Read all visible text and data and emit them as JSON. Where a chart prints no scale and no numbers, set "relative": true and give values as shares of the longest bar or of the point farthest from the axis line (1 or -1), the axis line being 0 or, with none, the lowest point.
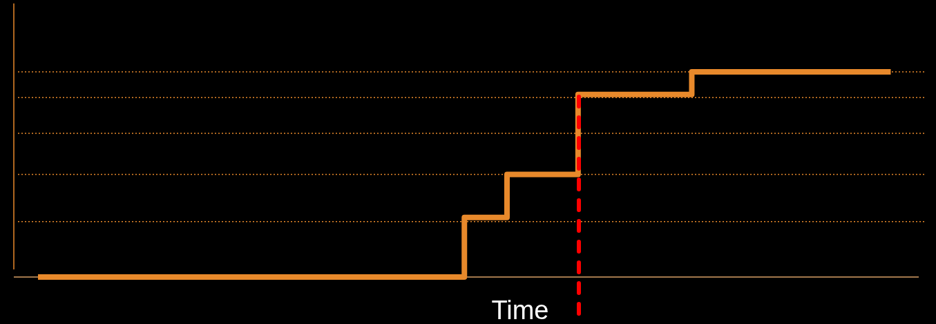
{
  "chart_data": {
    "type": "step",
    "xlabel": "Time",
    "relative": true,
    "categories": [
      null,
      null,
      null,
      null,
      null,
      null,
      null,
      null,
      null,
      null,
      null,
      null,
      null,
      null,
      null,
      null,
      null,
      null,
      null,
      null,
      null,
      null,
      null,
      null,
      null,
      null,
      null,
      null,
      null,
      null,
      null,
      null,
      null,
      null,
      null,
      null,
      null,
      null,
      null,
      null,
      null,
      null,
      null,
      null,
      null,
      null,
      null,
      null,
      null,
      null,
      null,
      null,
      null,
      null,
      null,
      null,
      null,
      null,
      null,
      null,
      null
    ],
    "series": [
      {
        "color": "#e8892b",
        "values": [
          0,
          0,
          0,
          0,
          0,
          0,
          0,
          0,
          0,
          0,
          0,
          0,
          0,
          0,
          0,
          0,
          0,
          0,
          0,
          0,
          0,
          0,
          0,
          0,
          0,
          0,
          0,
          0,
          0,
          0,
          0.29,
          0.29,
          0.29,
          0.5,
          0.5,
          0.5,
          0.5,
          0.5,
          0.89,
          0.89,
          0.89,
          0.89,
          0.89,
          0.89,
          0.89,
          0.89,
          1,
          1,
          1,
          1,
          1,
          1,
          1,
          1,
          1,
          1,
          1,
          1,
          1,
          1,
          1
        ]
      }
    ],
    "ref_lines": [
      {
        "axis": "y",
        "value": 1,
        "color": "#e8892b",
        "line_style": "dotted"
      },
      {
        "axis": "y",
        "value": 0.875,
        "color": "#e8892b",
        "line_style": "dotted"
      },
      {
        "axis": "y",
        "value": 0.7,
        "color": "#e8892b",
        "line_style": "dotted"
      },
      {
        "axis": "y",
        "value": 0.5,
        "color": "#e8892b",
        "line_style": "dotted"
      },
      {
        "axis": "y",
        "value": 0.27,
        "color": "#e8892b",
        "line_style": "dotted"
      }
    ]
  }
}
